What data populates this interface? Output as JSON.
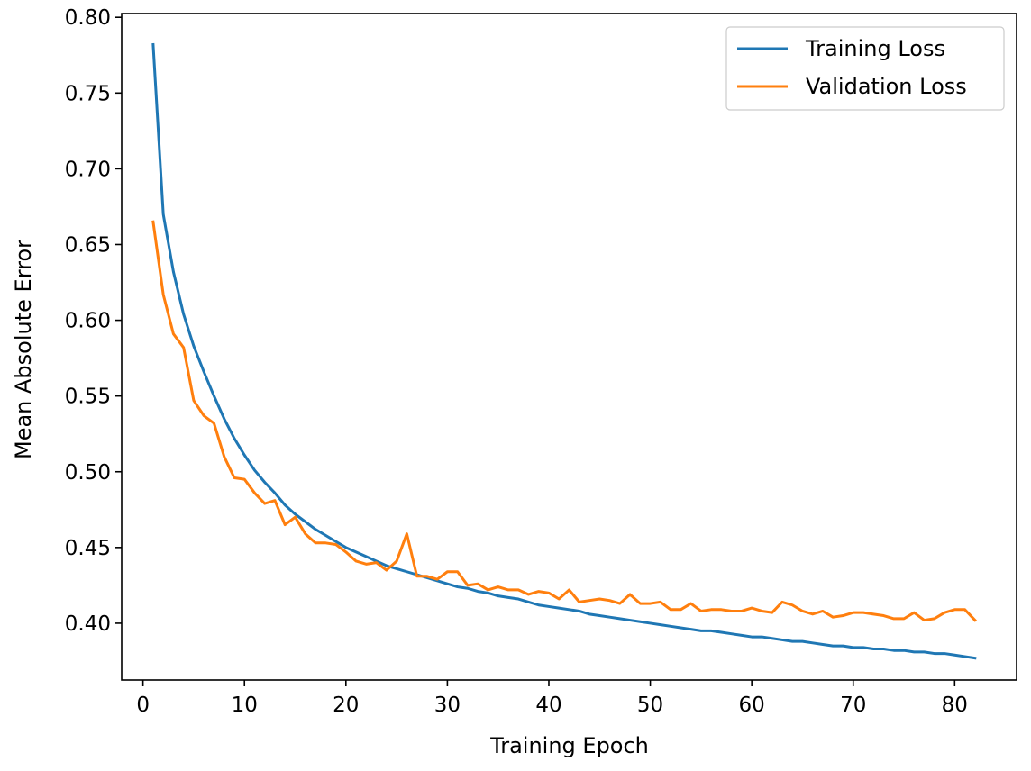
{
  "chart_data": {
    "type": "line",
    "title": "",
    "xlabel": "Training Epoch",
    "ylabel": "Mean Absolute Error",
    "xlim": [
      -2.1,
      86.1
    ],
    "ylim": [
      0.3625,
      0.8025
    ],
    "x_ticks": [
      0,
      10,
      20,
      30,
      40,
      50,
      60,
      70,
      80
    ],
    "y_ticks": [
      0.4,
      0.45,
      0.5,
      0.55,
      0.6,
      0.65,
      0.7,
      0.75,
      0.8
    ],
    "x_tick_labels": [
      "0",
      "10",
      "20",
      "30",
      "40",
      "50",
      "60",
      "70",
      "80"
    ],
    "y_tick_labels": [
      "0.40",
      "0.45",
      "0.50",
      "0.55",
      "0.60",
      "0.65",
      "0.70",
      "0.75",
      "0.80"
    ],
    "grid": false,
    "legend_position": "top-right",
    "x": [
      1,
      2,
      3,
      4,
      5,
      6,
      7,
      8,
      9,
      10,
      11,
      12,
      13,
      14,
      15,
      16,
      17,
      18,
      19,
      20,
      21,
      22,
      23,
      24,
      25,
      26,
      27,
      28,
      29,
      30,
      31,
      32,
      33,
      34,
      35,
      36,
      37,
      38,
      39,
      40,
      41,
      42,
      43,
      44,
      45,
      46,
      47,
      48,
      49,
      50,
      51,
      52,
      53,
      54,
      55,
      56,
      57,
      58,
      59,
      60,
      61,
      62,
      63,
      64,
      65,
      66,
      67,
      68,
      69,
      70,
      71,
      72,
      73,
      74,
      75,
      76,
      77,
      78,
      79,
      80,
      81,
      82
    ],
    "series": [
      {
        "name": "Training Loss",
        "color": "#1f77b4",
        "values": [
          0.782,
          0.67,
          0.632,
          0.604,
          0.583,
          0.566,
          0.55,
          0.535,
          0.522,
          0.511,
          0.501,
          0.493,
          0.486,
          0.478,
          0.472,
          0.467,
          0.462,
          0.458,
          0.454,
          0.45,
          0.447,
          0.444,
          0.441,
          0.438,
          0.436,
          0.434,
          0.432,
          0.43,
          0.428,
          0.426,
          0.424,
          0.423,
          0.421,
          0.42,
          0.418,
          0.417,
          0.416,
          0.414,
          0.412,
          0.411,
          0.41,
          0.409,
          0.408,
          0.406,
          0.405,
          0.404,
          0.403,
          0.402,
          0.401,
          0.4,
          0.399,
          0.398,
          0.397,
          0.396,
          0.395,
          0.395,
          0.394,
          0.393,
          0.392,
          0.391,
          0.391,
          0.39,
          0.389,
          0.388,
          0.388,
          0.387,
          0.386,
          0.385,
          0.385,
          0.384,
          0.384,
          0.383,
          0.383,
          0.382,
          0.382,
          0.381,
          0.381,
          0.38,
          0.38,
          0.379,
          0.378,
          0.377
        ]
      },
      {
        "name": "Validation Loss",
        "color": "#ff7f0e",
        "values": [
          0.665,
          0.617,
          0.591,
          0.582,
          0.547,
          0.537,
          0.532,
          0.51,
          0.496,
          0.495,
          0.486,
          0.479,
          0.481,
          0.465,
          0.47,
          0.459,
          0.453,
          0.453,
          0.452,
          0.447,
          0.441,
          0.439,
          0.44,
          0.435,
          0.441,
          0.459,
          0.431,
          0.431,
          0.429,
          0.434,
          0.434,
          0.425,
          0.426,
          0.422,
          0.424,
          0.422,
          0.422,
          0.419,
          0.421,
          0.42,
          0.416,
          0.422,
          0.414,
          0.415,
          0.416,
          0.415,
          0.413,
          0.419,
          0.413,
          0.413,
          0.414,
          0.409,
          0.409,
          0.413,
          0.408,
          0.409,
          0.409,
          0.408,
          0.408,
          0.41,
          0.408,
          0.407,
          0.414,
          0.412,
          0.408,
          0.406,
          0.408,
          0.404,
          0.405,
          0.407,
          0.407,
          0.406,
          0.405,
          0.403,
          0.403,
          0.407,
          0.402,
          0.403,
          0.407,
          0.409,
          0.409,
          0.402
        ]
      }
    ]
  }
}
